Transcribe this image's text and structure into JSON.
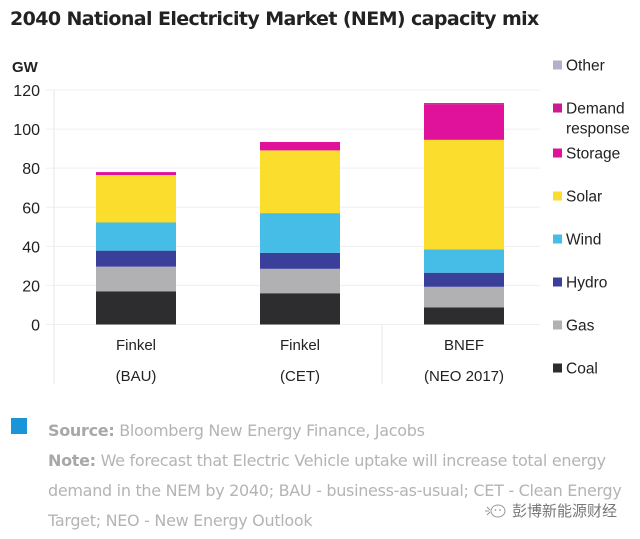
{
  "title": "2040 National Electricity Market (NEM) capacity mix",
  "chart_data": {
    "type": "bar",
    "stacked": true,
    "title": "2040 National Electricity Market (NEM) capacity mix",
    "ylabel": "GW",
    "xlabel": "",
    "ylim": [
      0,
      120
    ],
    "yticks": [
      0,
      20,
      40,
      60,
      80,
      100,
      120
    ],
    "grid": true,
    "legend_position": "right",
    "categories": [
      {
        "line1": "Finkel",
        "line2": "(BAU)"
      },
      {
        "line1": "Finkel",
        "line2": "(CET)"
      },
      {
        "line1": "BNEF",
        "line2": "(NEO 2017)"
      }
    ],
    "series": [
      {
        "name": "Coal",
        "color": "#2d2c2e",
        "values": [
          17,
          16,
          8.7
        ]
      },
      {
        "name": "Gas",
        "color": "#b1b0b3",
        "values": [
          12.6,
          12.5,
          10.6
        ]
      },
      {
        "name": "Hydro",
        "color": "#3a3f9a",
        "values": [
          8.2,
          8.2,
          7.2
        ]
      },
      {
        "name": "Wind",
        "color": "#45bde6",
        "values": [
          14.4,
          20.3,
          12
        ]
      },
      {
        "name": "Solar",
        "color": "#fbdd2e",
        "values": [
          24.3,
          32.1,
          56
        ]
      },
      {
        "name": "Storage",
        "color": "#e0119b",
        "values": [
          1.5,
          4.3,
          18
        ]
      },
      {
        "name": "Demand response",
        "color": "#cc1a90",
        "values": [
          0,
          0,
          0.8
        ]
      },
      {
        "name": "Other",
        "color": "#b4b0c9",
        "values": [
          0,
          0,
          0
        ]
      }
    ],
    "legend_order": [
      "Other",
      "Demand response",
      "Storage",
      "Solar",
      "Wind",
      "Hydro",
      "Gas",
      "Coal"
    ],
    "legend_labels": [
      {
        "name": "Other",
        "lines": [
          "Other"
        ],
        "color": "#b4b0c9"
      },
      {
        "name": "Demand response",
        "lines": [
          "Demand",
          "response"
        ],
        "color": "#cc1a90"
      },
      {
        "name": "Storage",
        "lines": [
          "Storage"
        ],
        "color": "#e0119b"
      },
      {
        "name": "Solar",
        "lines": [
          "Solar"
        ],
        "color": "#fbdd2e"
      },
      {
        "name": "Wind",
        "lines": [
          "Wind"
        ],
        "color": "#45bde6"
      },
      {
        "name": "Hydro",
        "lines": [
          "Hydro"
        ],
        "color": "#3a3f9a"
      },
      {
        "name": "Gas",
        "lines": [
          "Gas"
        ],
        "color": "#b1b0b3"
      },
      {
        "name": "Coal",
        "lines": [
          "Coal"
        ],
        "color": "#2d2c2e"
      }
    ]
  },
  "footer": {
    "source_label": "Source:",
    "source_text": " Bloomberg New Energy Finance, Jacobs",
    "note_label": "Note:",
    "note_text": " We forecast that Electric Vehicle uptake will increase total energy demand in the NEM by 2040; BAU - business-as-usual; CET - Clean Energy Target; NEO - New Energy Outlook",
    "accent_color": "#1b95d8"
  },
  "watermark": {
    "icon": "wechat-icon",
    "text": "彭博新能源财经"
  }
}
